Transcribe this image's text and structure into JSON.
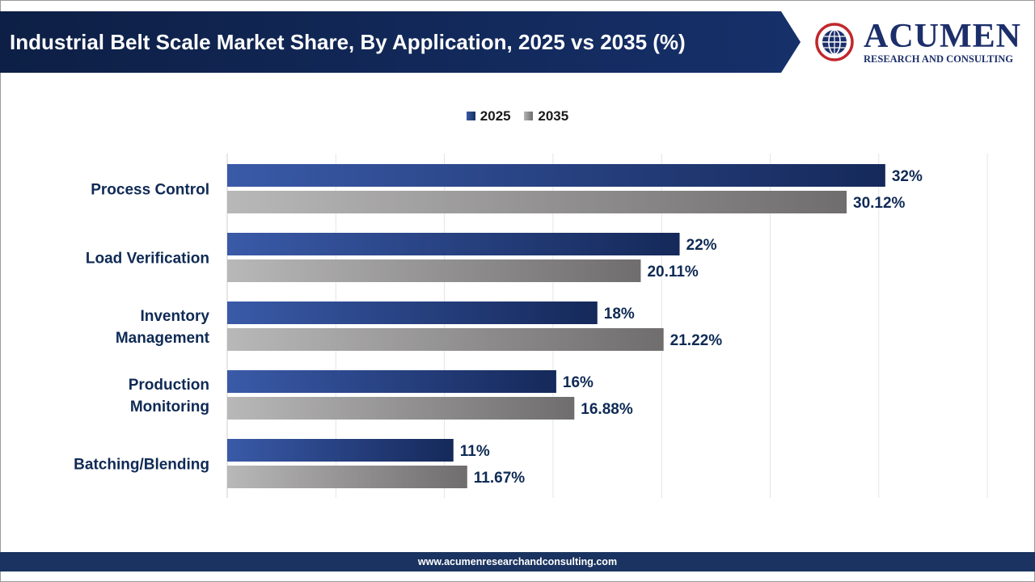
{
  "title": "Industrial Belt Scale Market Share, By Application, 2025 vs 2035 (%)",
  "logo": {
    "word": "ACUMEN",
    "subtitle": "RESEARCH AND CONSULTING"
  },
  "footer": {
    "url": "www.acumenresearchandconsulting.com"
  },
  "colors": {
    "title_bar": "#0f2350",
    "series_2025": "#1c3668",
    "series_2035": "#7a7878",
    "label_text": "#0f2a55"
  },
  "chart_data": {
    "type": "bar",
    "orientation": "horizontal",
    "categories": [
      [
        "Process Control"
      ],
      [
        "Load Verification"
      ],
      [
        "Inventory",
        "Management"
      ],
      [
        "Production",
        "Monitoring"
      ],
      [
        "Batching/Blending"
      ]
    ],
    "series": [
      {
        "name": "2025",
        "values": [
          32,
          22,
          18,
          16,
          11
        ],
        "labels": [
          "32%",
          "22%",
          "18%",
          "16%",
          "11%"
        ]
      },
      {
        "name": "2035",
        "values": [
          30.12,
          20.11,
          21.22,
          16.88,
          11.67
        ],
        "labels": [
          "30.12%",
          "20.11%",
          "21.22%",
          "16.88%",
          "11.67%"
        ]
      }
    ],
    "xlim": [
      0,
      37
    ],
    "grid": true,
    "legend": "top-center"
  }
}
